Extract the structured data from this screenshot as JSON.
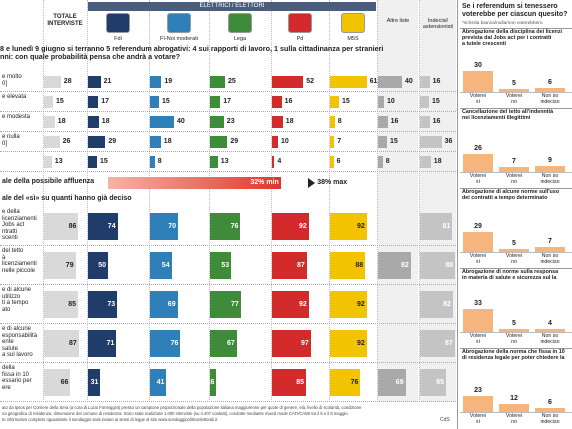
{
  "header": {
    "electors_label": "ELETTRICI / ELETTORI"
  },
  "notes": [
    "ato da Ipsos per Corriere della Sera (a cura di Lucio Formiggini) presso un campione proporzionale della popolazione italiana maggiorenne per quote di genere, età, livello di scolarità, condizione",
    "na geografica di residenza, dimensione del comune di residenza. Sono state realizzate 1.000 interviste (su 4.407 contatti), condotte mediante mixed mode CATI/CAWI tra il 6 e il 8 maggio",
    "to informativo completo riguardante il sondaggio sarà inviato ai sensi di legge al sito www.sondaggipoliticoelettorali.it"
  ],
  "source": "CdS",
  "chart_data": [
    {
      "type": "bar-table",
      "title": "8 e lunedì 9 giugno si terranno 5 referendum abrogativi: 4 sui rapporti di lavoro, 1 sulla cittadinanza per stranieri\nnni: con quale probabilità pensa che andrà a votare?",
      "categories": [
        "e molto\n0]",
        "e elevata",
        "e modesta",
        "e nulla\n0]",
        null
      ],
      "series": [
        {
          "name": "TOTALE INTERVISTE",
          "color": "#d9d9d9",
          "values": [
            28,
            15,
            18,
            26,
            13
          ]
        },
        {
          "name": "Fdi",
          "color": "#1f3c6b",
          "values": [
            21,
            17,
            18,
            29,
            15
          ]
        },
        {
          "name": "FI-Noi moderati",
          "color": "#2f7fb8",
          "values": [
            19,
            15,
            40,
            18,
            8
          ]
        },
        {
          "name": "Lega",
          "color": "#3e8b3a",
          "values": [
            25,
            17,
            23,
            29,
            13
          ]
        },
        {
          "name": "Pd",
          "color": "#d32b2b",
          "values": [
            52,
            16,
            18,
            10,
            4
          ]
        },
        {
          "name": "M5S",
          "color": "#f2c300",
          "values": [
            61,
            15,
            8,
            7,
            6
          ]
        },
        {
          "name": "Altre liste",
          "color": "#a9a9a9",
          "values": [
            40,
            10,
            16,
            15,
            8
          ]
        },
        {
          "name": "Indecisi/ astensionisti",
          "color": "#c4c4c4",
          "values": [
            16,
            15,
            16,
            36,
            18
          ]
        }
      ]
    },
    {
      "type": "range",
      "title": "ale della possibile affluenza",
      "values": [
        32,
        38
      ],
      "value_labels": [
        "32% min",
        "38% max"
      ],
      "color": "#e0362c"
    },
    {
      "type": "bar-table",
      "title": "ale del «sì» su quanti hanno già deciso",
      "categories": [
        "e della\nlicenziamenti\nJobs act\nntratti\nscenti",
        "del tetto\nà\nlicenziamenti\nnelle piccole",
        "e di alcune\nutilizzo\nti a tempo\nato",
        "e di alcune\nesponsabilità\nente\nsalute\na sul lavoro",
        "della\nfissa in 10\nessario per\nere"
      ],
      "series": [
        {
          "color": "#d9d9d9",
          "values": [
            86,
            79,
            85,
            87,
            66
          ]
        },
        {
          "color": "#1f3c6b",
          "values": [
            74,
            50,
            73,
            71,
            31
          ]
        },
        {
          "color": "#2f7fb8",
          "values": [
            70,
            54,
            69,
            76,
            41
          ]
        },
        {
          "color": "#3e8b3a",
          "values": [
            76,
            53,
            77,
            67,
            16
          ]
        },
        {
          "color": "#d32b2b",
          "values": [
            92,
            87,
            92,
            97,
            85
          ]
        },
        {
          "color": "#f2c300",
          "values": [
            92,
            88,
            92,
            92,
            76
          ]
        },
        {
          "color": "#a9a9a9",
          "values": [
            null,
            82,
            null,
            null,
            69
          ]
        },
        {
          "color": "#c4c4c4",
          "values": [
            81,
            88,
            82,
            87,
            65
          ]
        }
      ]
    },
    {
      "type": "column",
      "title": "Se i referendum si tenessero\nvoterebbe per ciascun quesito?",
      "subtitle": "*scheda bianca/nulla/non voterebbero",
      "color": "#f5b57c",
      "categories": [
        "Voterei\nsì",
        "Voterei\nno",
        "Non so\nindeciso"
      ],
      "series": [
        {
          "name": "Abrogazione della disciplina dei licenzi\nprevista dal Jobs act per i contratti\na tutele crescenti",
          "values": [
            30,
            5,
            6
          ]
        },
        {
          "name": "Cancellazione del tetto all'indennità\nnei licenziamenti illegittimi",
          "values": [
            26,
            7,
            9
          ]
        },
        {
          "name": "Abrogazione di alcune norme sull'uso\ndei contratti a tempo determinato",
          "values": [
            29,
            5,
            7
          ]
        },
        {
          "name": "Abrogazione di norme sulla responsa\nin materia di salute e sicurezza sul la",
          "values": [
            33,
            5,
            4
          ]
        },
        {
          "name": "Abrogazione della norma che fissa in 10\ndi residenza legale per poter chiedere la",
          "values": [
            23,
            12,
            6
          ]
        }
      ]
    }
  ]
}
